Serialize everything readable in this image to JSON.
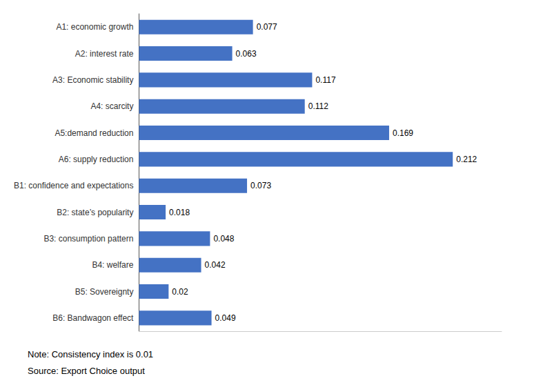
{
  "chart_data": {
    "type": "bar",
    "orientation": "horizontal",
    "categories": [
      "A1: economic growth",
      "A2: interest rate",
      "A3: Economic stability",
      "A4: scarcity",
      "A5:demand reduction",
      "A6: supply reduction",
      "B1: confidence and expectations",
      "B2: state’s popularity",
      "B3: consumption pattern",
      "B4: welfare",
      "B5: Sovereignty",
      "B6: Bandwagon effect"
    ],
    "values": [
      0.077,
      0.063,
      0.117,
      0.112,
      0.169,
      0.212,
      0.073,
      0.018,
      0.048,
      0.042,
      0.02,
      0.049
    ],
    "color": "#4472C4",
    "xlim": [
      0,
      0.245
    ],
    "data_labels": true,
    "tick_labels": "y",
    "grid": false,
    "annotations": [
      "Note: Consistency index is 0.01",
      "Source: Export Choice output"
    ]
  }
}
